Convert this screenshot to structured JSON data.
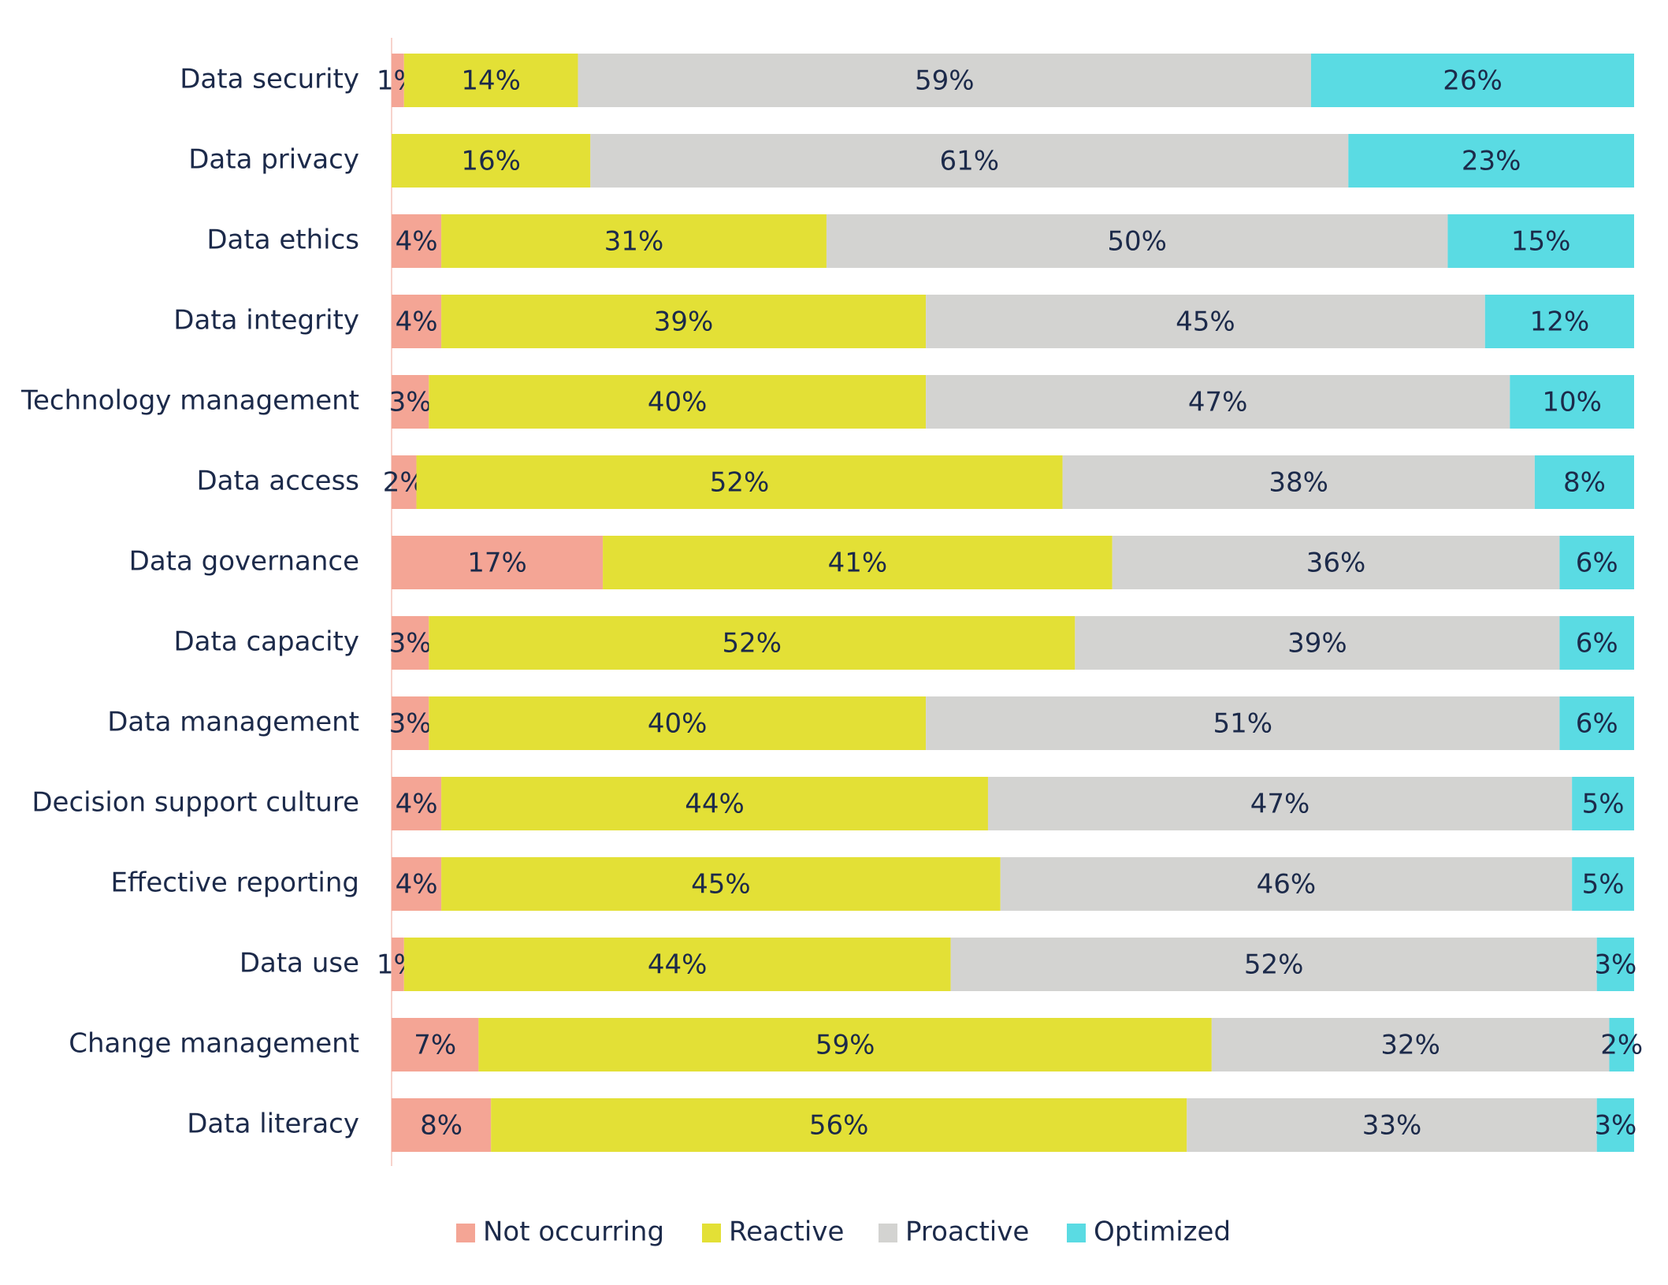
{
  "chart_data": {
    "type": "stacked_barh",
    "categories": [
      "Data security",
      "Data privacy",
      "Data ethics",
      "Data integrity",
      "Technology management",
      "Data access",
      "Data governance",
      "Data capacity",
      "Data management",
      "Decision support culture",
      "Effective reporting",
      "Data use",
      "Change management",
      "Data literacy"
    ],
    "xlim": [
      0,
      100
    ],
    "legend": "bottom",
    "series": [
      {
        "name": "Not occurring",
        "color": "#f4a595",
        "values": [
          1,
          0,
          4,
          4,
          3,
          2,
          17,
          3,
          3,
          4,
          4,
          1,
          7,
          8
        ],
        "value_labels": [
          "1%",
          null,
          "4%",
          "4%",
          "3%",
          "2%",
          "17%",
          "3%",
          "3%",
          "4%",
          "4%",
          "1%",
          "7%",
          "8%"
        ]
      },
      {
        "name": "Reactive",
        "color": "#e3e036",
        "values": [
          14,
          16,
          31,
          39,
          40,
          52,
          41,
          52,
          40,
          44,
          45,
          44,
          59,
          56
        ],
        "value_labels": [
          "14%",
          "16%",
          "31%",
          "39%",
          "40%",
          "52%",
          "41%",
          "52%",
          "40%",
          "44%",
          "45%",
          "44%",
          "59%",
          "56%"
        ]
      },
      {
        "name": "Proactive",
        "color": "#d3d3d1",
        "values": [
          59,
          61,
          50,
          45,
          47,
          38,
          36,
          39,
          51,
          47,
          46,
          52,
          32,
          33
        ],
        "value_labels": [
          "59%",
          "61%",
          "50%",
          "45%",
          "47%",
          "38%",
          "36%",
          "39%",
          "51%",
          "47%",
          "46%",
          "52%",
          "32%",
          "33%"
        ]
      },
      {
        "name": "Optimized",
        "color": "#5adbe3",
        "values": [
          26,
          23,
          15,
          12,
          10,
          8,
          6,
          6,
          6,
          5,
          5,
          3,
          2,
          3
        ],
        "value_labels": [
          "26%",
          "23%",
          "15%",
          "12%",
          "10%",
          "8%",
          "6%",
          "6%",
          "6%",
          "5%",
          "5%",
          "3%",
          "2%",
          "3%"
        ]
      }
    ]
  }
}
